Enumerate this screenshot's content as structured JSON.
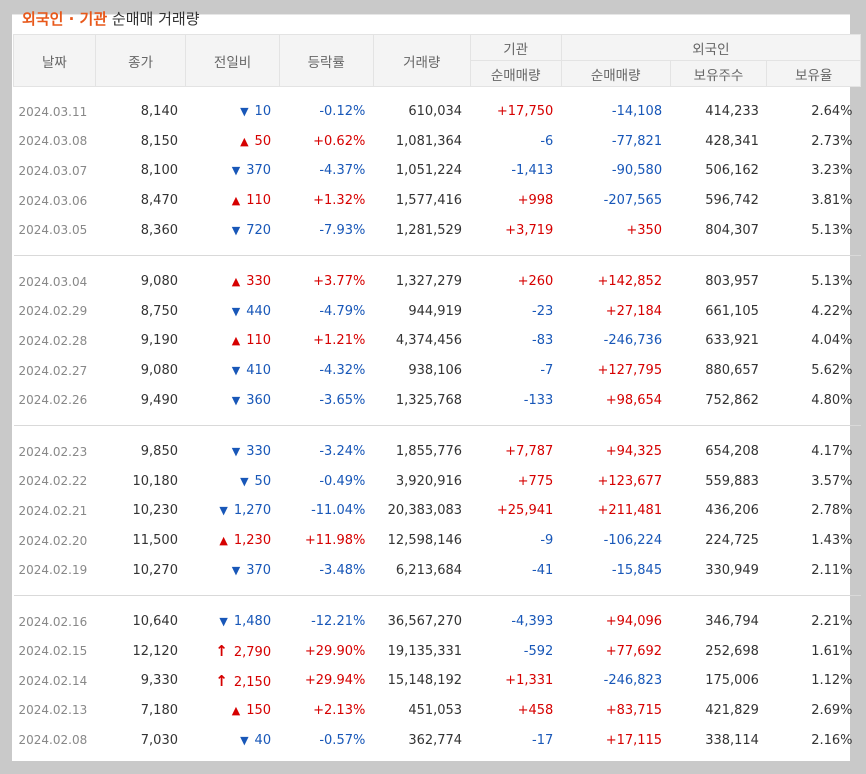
{
  "title": {
    "part1": "외국인 · 기관",
    "part2": " 순매매 거래량"
  },
  "headers": {
    "date": "날짜",
    "close": "종가",
    "change": "전일비",
    "rate": "등락률",
    "volume": "거래량",
    "inst": "기관",
    "foreign": "외국인",
    "inst_net": "순매매량",
    "foreign_net": "순매매량",
    "holdings": "보유주수",
    "ratio": "보유율"
  },
  "groups": [
    [
      {
        "date": "2024.03.11",
        "close": "8,140",
        "dir": "down",
        "change": "10",
        "rate": "-0.12%",
        "volume": "610,034",
        "inst": "+17,750",
        "foreign": "-14,108",
        "holdings": "414,233",
        "ratio": "2.64%"
      },
      {
        "date": "2024.03.08",
        "close": "8,150",
        "dir": "up",
        "change": "50",
        "rate": "+0.62%",
        "volume": "1,081,364",
        "inst": "-6",
        "foreign": "-77,821",
        "holdings": "428,341",
        "ratio": "2.73%"
      },
      {
        "date": "2024.03.07",
        "close": "8,100",
        "dir": "down",
        "change": "370",
        "rate": "-4.37%",
        "volume": "1,051,224",
        "inst": "-1,413",
        "foreign": "-90,580",
        "holdings": "506,162",
        "ratio": "3.23%"
      },
      {
        "date": "2024.03.06",
        "close": "8,470",
        "dir": "up",
        "change": "110",
        "rate": "+1.32%",
        "volume": "1,577,416",
        "inst": "+998",
        "foreign": "-207,565",
        "holdings": "596,742",
        "ratio": "3.81%"
      },
      {
        "date": "2024.03.05",
        "close": "8,360",
        "dir": "down",
        "change": "720",
        "rate": "-7.93%",
        "volume": "1,281,529",
        "inst": "+3,719",
        "foreign": "+350",
        "holdings": "804,307",
        "ratio": "5.13%"
      }
    ],
    [
      {
        "date": "2024.03.04",
        "close": "9,080",
        "dir": "up",
        "change": "330",
        "rate": "+3.77%",
        "volume": "1,327,279",
        "inst": "+260",
        "foreign": "+142,852",
        "holdings": "803,957",
        "ratio": "5.13%"
      },
      {
        "date": "2024.02.29",
        "close": "8,750",
        "dir": "down",
        "change": "440",
        "rate": "-4.79%",
        "volume": "944,919",
        "inst": "-23",
        "foreign": "+27,184",
        "holdings": "661,105",
        "ratio": "4.22%"
      },
      {
        "date": "2024.02.28",
        "close": "9,190",
        "dir": "up",
        "change": "110",
        "rate": "+1.21%",
        "volume": "4,374,456",
        "inst": "-83",
        "foreign": "-246,736",
        "holdings": "633,921",
        "ratio": "4.04%"
      },
      {
        "date": "2024.02.27",
        "close": "9,080",
        "dir": "down",
        "change": "410",
        "rate": "-4.32%",
        "volume": "938,106",
        "inst": "-7",
        "foreign": "+127,795",
        "holdings": "880,657",
        "ratio": "5.62%"
      },
      {
        "date": "2024.02.26",
        "close": "9,490",
        "dir": "down",
        "change": "360",
        "rate": "-3.65%",
        "volume": "1,325,768",
        "inst": "-133",
        "foreign": "+98,654",
        "holdings": "752,862",
        "ratio": "4.80%"
      }
    ],
    [
      {
        "date": "2024.02.23",
        "close": "9,850",
        "dir": "down",
        "change": "330",
        "rate": "-3.24%",
        "volume": "1,855,776",
        "inst": "+7,787",
        "foreign": "+94,325",
        "holdings": "654,208",
        "ratio": "4.17%"
      },
      {
        "date": "2024.02.22",
        "close": "10,180",
        "dir": "down",
        "change": "50",
        "rate": "-0.49%",
        "volume": "3,920,916",
        "inst": "+775",
        "foreign": "+123,677",
        "holdings": "559,883",
        "ratio": "3.57%"
      },
      {
        "date": "2024.02.21",
        "close": "10,230",
        "dir": "down",
        "change": "1,270",
        "rate": "-11.04%",
        "volume": "20,383,083",
        "inst": "+25,941",
        "foreign": "+211,481",
        "holdings": "436,206",
        "ratio": "2.78%"
      },
      {
        "date": "2024.02.20",
        "close": "11,500",
        "dir": "up",
        "change": "1,230",
        "rate": "+11.98%",
        "volume": "12,598,146",
        "inst": "-9",
        "foreign": "-106,224",
        "holdings": "224,725",
        "ratio": "1.43%"
      },
      {
        "date": "2024.02.19",
        "close": "10,270",
        "dir": "down",
        "change": "370",
        "rate": "-3.48%",
        "volume": "6,213,684",
        "inst": "-41",
        "foreign": "-15,845",
        "holdings": "330,949",
        "ratio": "2.11%"
      }
    ],
    [
      {
        "date": "2024.02.16",
        "close": "10,640",
        "dir": "down",
        "change": "1,480",
        "rate": "-12.21%",
        "volume": "36,567,270",
        "inst": "-4,393",
        "foreign": "+94,096",
        "holdings": "346,794",
        "ratio": "2.21%"
      },
      {
        "date": "2024.02.15",
        "close": "12,120",
        "dir": "limitup",
        "change": "2,790",
        "rate": "+29.90%",
        "volume": "19,135,331",
        "inst": "-592",
        "foreign": "+77,692",
        "holdings": "252,698",
        "ratio": "1.61%"
      },
      {
        "date": "2024.02.14",
        "close": "9,330",
        "dir": "limitup",
        "change": "2,150",
        "rate": "+29.94%",
        "volume": "15,148,192",
        "inst": "+1,331",
        "foreign": "-246,823",
        "holdings": "175,006",
        "ratio": "1.12%"
      },
      {
        "date": "2024.02.13",
        "close": "7,180",
        "dir": "up",
        "change": "150",
        "rate": "+2.13%",
        "volume": "451,053",
        "inst": "+458",
        "foreign": "+83,715",
        "holdings": "421,829",
        "ratio": "2.69%"
      },
      {
        "date": "2024.02.08",
        "close": "7,030",
        "dir": "down",
        "change": "40",
        "rate": "-0.57%",
        "volume": "362,774",
        "inst": "-17",
        "foreign": "+17,115",
        "holdings": "338,114",
        "ratio": "2.16%"
      }
    ]
  ],
  "colors": {
    "up": "#d60000",
    "down": "#1857b8",
    "accent": "#e8581a"
  },
  "icons": {
    "up": "triangle-up-icon",
    "down": "triangle-down-icon",
    "limitup": "arrow-up-icon"
  }
}
